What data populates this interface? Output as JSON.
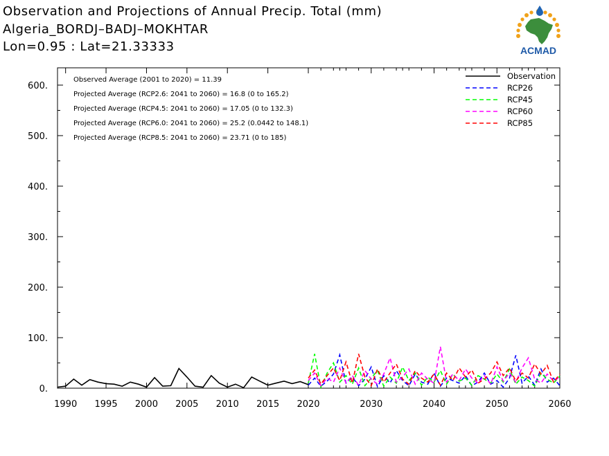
{
  "header": {
    "title_line1": "Observation and Projections of Annual Precip. Total (mm)",
    "title_line2": "Algeria_BORDJ–BADJ–MOKHTAR",
    "title_line3": "Lon=0.95 : Lat=21.33333",
    "logo_text": "ACMAD"
  },
  "chart_data": {
    "type": "line",
    "xlim": [
      1989,
      2060
    ],
    "ylim": [
      0,
      650
    ],
    "x_ticks": [
      1990,
      1995,
      2000,
      2005,
      2010,
      2015,
      2020,
      2030,
      2040,
      2050,
      2060
    ],
    "y_ticks": [
      0,
      100,
      200,
      300,
      400,
      500,
      600
    ],
    "y_tick_labels": [
      "0.",
      "100.",
      "200.",
      "300.",
      "400.",
      "500.",
      "600."
    ],
    "grid": false,
    "legend_position": "top-right",
    "annotations": [
      "Observed Average (2001 to 2020) = 11.39",
      "Projected Average (RCP2.6: 2041 to 2060) =  16.8 (0 to 165.2)",
      "Projected Average (RCP4.5: 2041 to 2060) =  17.05 (0 to 132.3)",
      "Projected Average (RCP6.0: 2041 to 2060) =  25.2 (0.0442 to 148.1)",
      "Projected Average (RCP8.5: 2041 to 2060) =  23.71 (0 to 185)"
    ],
    "series": [
      {
        "name": "Observation",
        "color": "#000000",
        "dashed": false,
        "x": [
          1989,
          1990,
          1991,
          1992,
          1993,
          1994,
          1995,
          1996,
          1997,
          1998,
          1999,
          2000,
          2001,
          2002,
          2003,
          2004,
          2005,
          2006,
          2007,
          2008,
          2009,
          2010,
          2011,
          2012,
          2013,
          2014,
          2015,
          2016,
          2017,
          2018,
          2019,
          2020
        ],
        "values": [
          2,
          4,
          18,
          6,
          17,
          12,
          9,
          8,
          4,
          12,
          8,
          2,
          21,
          4,
          5,
          39,
          22,
          4,
          2,
          25,
          10,
          2,
          8,
          1,
          22,
          14,
          6,
          10,
          14,
          9,
          13,
          7
        ]
      },
      {
        "name": "RCP26",
        "color": "#0000ff",
        "dashed": true,
        "x": [
          2020,
          2021,
          2022,
          2023,
          2024,
          2025,
          2026,
          2027,
          2028,
          2029,
          2030,
          2031,
          2032,
          2033,
          2034,
          2035,
          2036,
          2037,
          2038,
          2039,
          2040,
          2041,
          2042,
          2043,
          2044,
          2045,
          2046,
          2047,
          2048,
          2049,
          2050,
          2051,
          2052,
          2053,
          2054,
          2055,
          2056,
          2057,
          2058,
          2059,
          2060
        ],
        "values": [
          6,
          20,
          4,
          14,
          28,
          66,
          10,
          22,
          5,
          18,
          42,
          3,
          25,
          10,
          35,
          15,
          5,
          28,
          12,
          8,
          30,
          4,
          20,
          15,
          10,
          25,
          5,
          12,
          30,
          8,
          15,
          2,
          20,
          65,
          10,
          24,
          6,
          38,
          12,
          20,
          5
        ]
      },
      {
        "name": "RCP45",
        "color": "#00ff00",
        "dashed": true,
        "x": [
          2020,
          2021,
          2022,
          2023,
          2024,
          2025,
          2026,
          2027,
          2028,
          2029,
          2030,
          2031,
          2032,
          2033,
          2034,
          2035,
          2036,
          2037,
          2038,
          2039,
          2040,
          2041,
          2042,
          2043,
          2044,
          2045,
          2046,
          2047,
          2048,
          2049,
          2050,
          2051,
          2052,
          2053,
          2054,
          2055,
          2056,
          2057,
          2058,
          2059,
          2060
        ],
        "values": [
          10,
          68,
          2,
          30,
          50,
          12,
          25,
          8,
          40,
          5,
          20,
          35,
          4,
          22,
          10,
          42,
          15,
          30,
          6,
          22,
          12,
          35,
          8,
          28,
          14,
          20,
          6,
          25,
          18,
          10,
          28,
          12,
          38,
          8,
          22,
          15,
          4,
          30,
          18,
          10,
          24
        ]
      },
      {
        "name": "RCP60",
        "color": "#ff00ff",
        "dashed": true,
        "x": [
          2020,
          2021,
          2022,
          2023,
          2024,
          2025,
          2026,
          2027,
          2028,
          2029,
          2030,
          2031,
          2032,
          2033,
          2034,
          2035,
          2036,
          2037,
          2038,
          2039,
          2040,
          2041,
          2042,
          2043,
          2044,
          2045,
          2046,
          2047,
          2048,
          2049,
          2050,
          2051,
          2052,
          2053,
          2054,
          2055,
          2056,
          2057,
          2058,
          2059,
          2060
        ],
        "values": [
          15,
          30,
          5,
          20,
          12,
          40,
          10,
          25,
          6,
          35,
          18,
          8,
          28,
          60,
          12,
          22,
          38,
          8,
          30,
          18,
          10,
          82,
          12,
          28,
          15,
          38,
          20,
          10,
          25,
          8,
          42,
          14,
          30,
          12,
          40,
          60,
          18,
          10,
          28,
          14,
          22
        ]
      },
      {
        "name": "RCP85",
        "color": "#ff0000",
        "dashed": true,
        "x": [
          2020,
          2021,
          2022,
          2023,
          2024,
          2025,
          2026,
          2027,
          2028,
          2029,
          2030,
          2031,
          2032,
          2033,
          2034,
          2035,
          2036,
          2037,
          2038,
          2039,
          2040,
          2041,
          2042,
          2043,
          2044,
          2045,
          2046,
          2047,
          2048,
          2049,
          2050,
          2051,
          2052,
          2053,
          2054,
          2055,
          2056,
          2057,
          2058,
          2059,
          2060
        ],
        "values": [
          20,
          36,
          8,
          25,
          40,
          15,
          52,
          10,
          68,
          22,
          5,
          38,
          12,
          30,
          48,
          18,
          8,
          35,
          20,
          12,
          28,
          6,
          30,
          15,
          40,
          22,
          36,
          10,
          18,
          30,
          52,
          25,
          40,
          14,
          30,
          20,
          48,
          28,
          45,
          12,
          28
        ]
      }
    ]
  }
}
